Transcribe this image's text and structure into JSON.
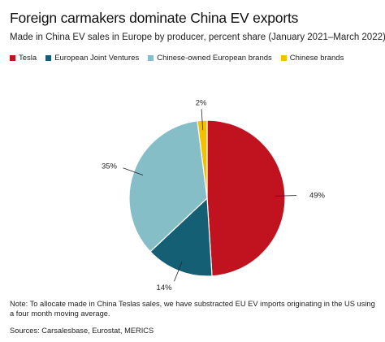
{
  "title": "Foreign carmakers dominate China EV exports",
  "subtitle": "Made in China EV sales in Europe by producer, percent share (January 2021–March 2022)",
  "legend": [
    {
      "label": "Tesla",
      "color": "#c0121f"
    },
    {
      "label": "European Joint Ventures",
      "color": "#145f74"
    },
    {
      "label": "Chinese-owned European brands",
      "color": "#85bec7"
    },
    {
      "label": "Chinese brands",
      "color": "#f2c100"
    }
  ],
  "chart_data": {
    "type": "pie",
    "categories": [
      "Tesla",
      "European Joint Ventures",
      "Chinese-owned European brands",
      "Chinese brands"
    ],
    "values": [
      49,
      14,
      35,
      2
    ],
    "labels": [
      "49%",
      "14%",
      "35%",
      "2%"
    ],
    "colors": [
      "#c0121f",
      "#145f74",
      "#85bec7",
      "#f2c100"
    ],
    "start": "12 o'clock",
    "direction": "clockwise"
  },
  "note": "Note: To allocate made in China Teslas sales, we have substracted EU EV imports originating in the US using a four month moving average.",
  "sources": "Sources: Carsalesbase, Eurostat, MERICS"
}
